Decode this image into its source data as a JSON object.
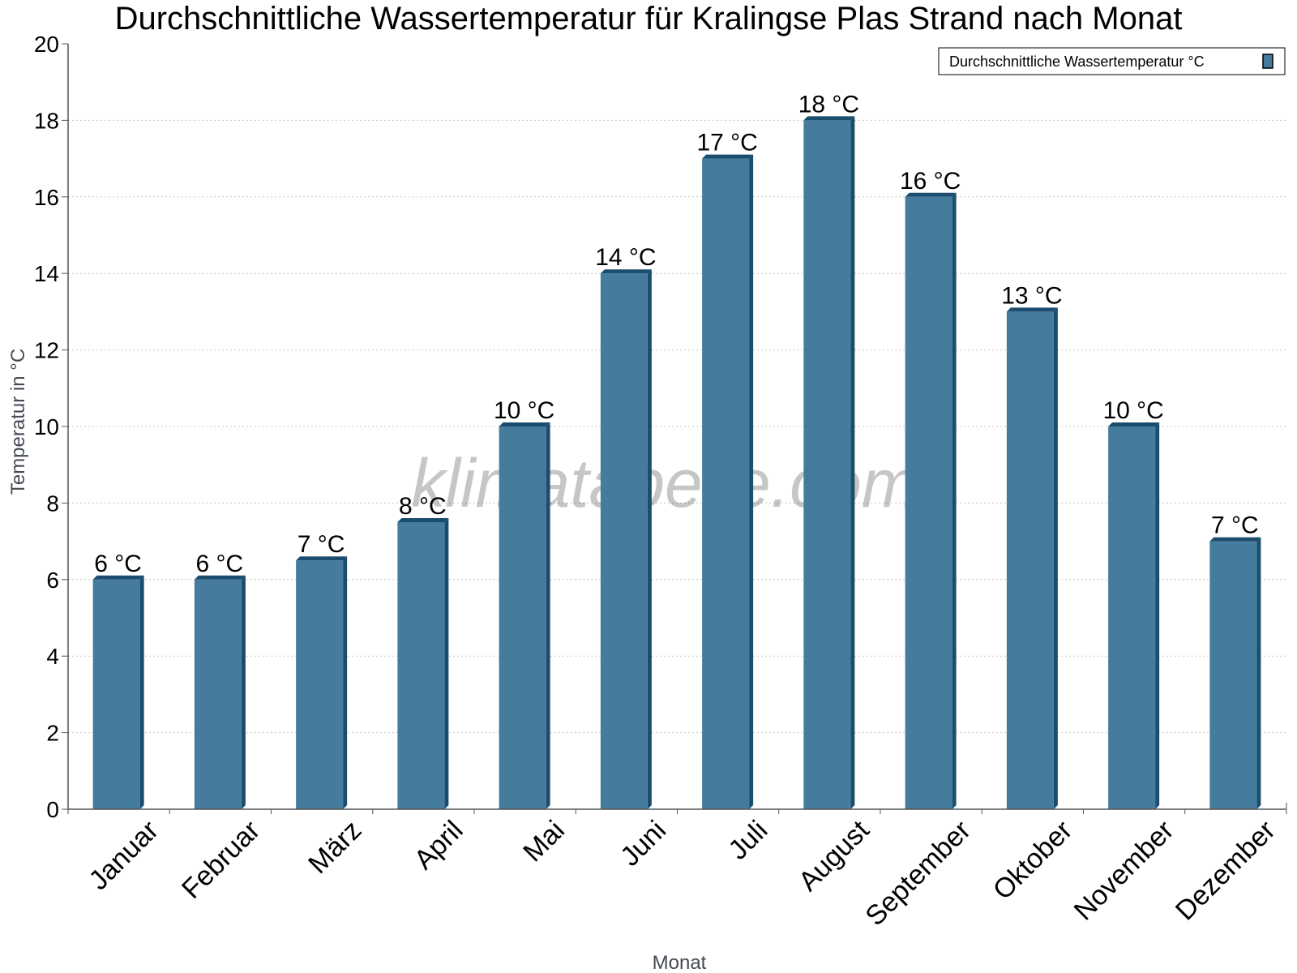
{
  "chart_data": {
    "type": "bar",
    "title": "Durchschnittliche Wassertemperatur für Kralingse Plas Strand nach Monat",
    "xlabel": "Monat",
    "ylabel": "Temperatur in °C",
    "ylim": [
      0,
      20
    ],
    "yticks": [
      0,
      2,
      4,
      6,
      8,
      10,
      12,
      14,
      16,
      18,
      20
    ],
    "grid": true,
    "legend_position": "top-right",
    "categories": [
      "Januar",
      "Februar",
      "März",
      "April",
      "Mai",
      "Juni",
      "Juli",
      "August",
      "September",
      "Oktober",
      "November",
      "Dezember"
    ],
    "series": [
      {
        "name": "Durchschnittliche Wassertemperatur °C",
        "values": [
          6,
          6,
          6.5,
          7.5,
          10,
          14,
          17,
          18,
          16,
          13,
          10,
          7
        ],
        "labels": [
          "6 °C",
          "6 °C",
          "7 °C",
          "8 °C",
          "10 °C",
          "14 °C",
          "17 °C",
          "18 °C",
          "16 °C",
          "13 °C",
          "10 °C",
          "7 °C"
        ]
      }
    ],
    "colors": {
      "bar": "#457b9d",
      "bar_edge": "#1a4d6e"
    },
    "watermark": "klimatabelle.com"
  }
}
